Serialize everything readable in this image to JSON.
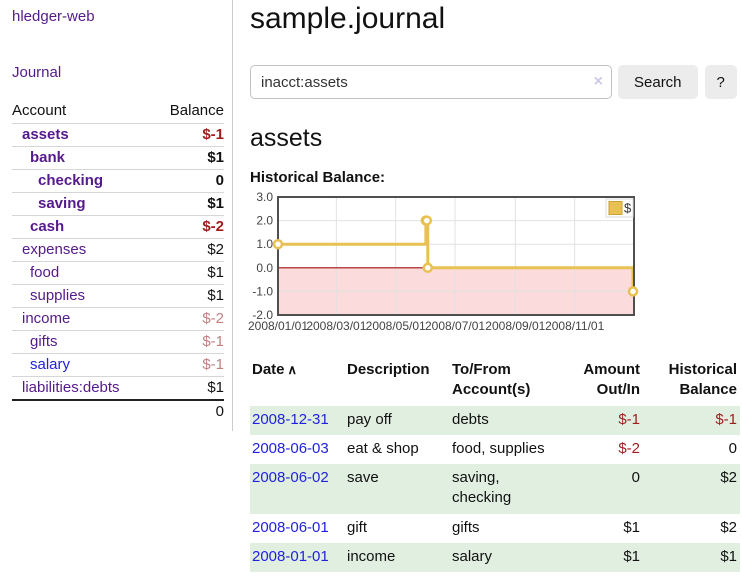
{
  "app": {
    "title": "hledger-web",
    "nav_journal": "Journal"
  },
  "sidebar": {
    "header": {
      "account": "Account",
      "balance": "Balance"
    },
    "accounts": [
      {
        "name": "assets",
        "balance": "$-1"
      },
      {
        "name": "bank",
        "balance": "$1"
      },
      {
        "name": "checking",
        "balance": "0"
      },
      {
        "name": "saving",
        "balance": "$1"
      },
      {
        "name": "cash",
        "balance": "$-2"
      },
      {
        "name": "expenses",
        "balance": "$2"
      },
      {
        "name": "food",
        "balance": "$1"
      },
      {
        "name": "supplies",
        "balance": "$1"
      },
      {
        "name": "income",
        "balance": "$-2"
      },
      {
        "name": "gifts",
        "balance": "$-1"
      },
      {
        "name": "salary",
        "balance": "$-1"
      },
      {
        "name": "liabilities:debts",
        "balance": "$1"
      }
    ],
    "total": "0"
  },
  "main": {
    "title": "sample.journal",
    "search": {
      "value": "inacct:assets",
      "clear": "×",
      "button": "Search",
      "help": "?"
    },
    "heading": "assets",
    "chart_title": "Historical Balance:"
  },
  "chart_data": {
    "type": "line",
    "step": true,
    "title": "Historical Balance",
    "series": [
      {
        "name": "$",
        "color": "#e9c152",
        "points": [
          [
            "2008-01-01",
            1
          ],
          [
            "2008-06-01",
            2
          ],
          [
            "2008-06-02",
            2
          ],
          [
            "2008-06-03",
            0
          ],
          [
            "2008-12-31",
            -1
          ]
        ]
      }
    ],
    "x_start": "2008-01-01",
    "x_span_days": 366,
    "x_ticks": [
      "2008/01/01",
      "2008/03/01",
      "2008/05/01",
      "2008/07/01",
      "2008/09/01",
      "2008/11/01"
    ],
    "y_ticks": [
      3,
      2,
      1,
      0,
      -1,
      -2
    ],
    "ylim": [
      -2,
      3
    ],
    "grid": true,
    "legend": {
      "label": "$",
      "position": "top-right",
      "swatch_color": "#e9c152"
    },
    "zero_line_color": "#a21010",
    "negative_region_color": "#fbdbdb",
    "grid_color": "#e2e2e2",
    "border_color": "#4f4f4f",
    "tick_label_color": "#444444"
  },
  "register": {
    "headers": {
      "date": "Date",
      "sort": "∧",
      "description": "Description",
      "accounts": "To/From Account(s)",
      "amount": "Amount Out/In",
      "balance": "Historical Balance"
    },
    "rows": [
      {
        "date": "2008-12-31",
        "description": "pay off",
        "accounts": "debts",
        "amount": "$-1",
        "balance": "$-1"
      },
      {
        "date": "2008-06-03",
        "description": "eat & shop",
        "accounts": "food, supplies",
        "amount": "$-2",
        "balance": "0"
      },
      {
        "date": "2008-06-02",
        "description": "save",
        "accounts": "saving, checking",
        "amount": "0",
        "balance": "$2"
      },
      {
        "date": "2008-06-01",
        "description": "gift",
        "accounts": "gifts",
        "amount": "$1",
        "balance": "$2"
      },
      {
        "date": "2008-01-01",
        "description": "income",
        "accounts": "salary",
        "amount": "$1",
        "balance": "$1"
      }
    ]
  }
}
